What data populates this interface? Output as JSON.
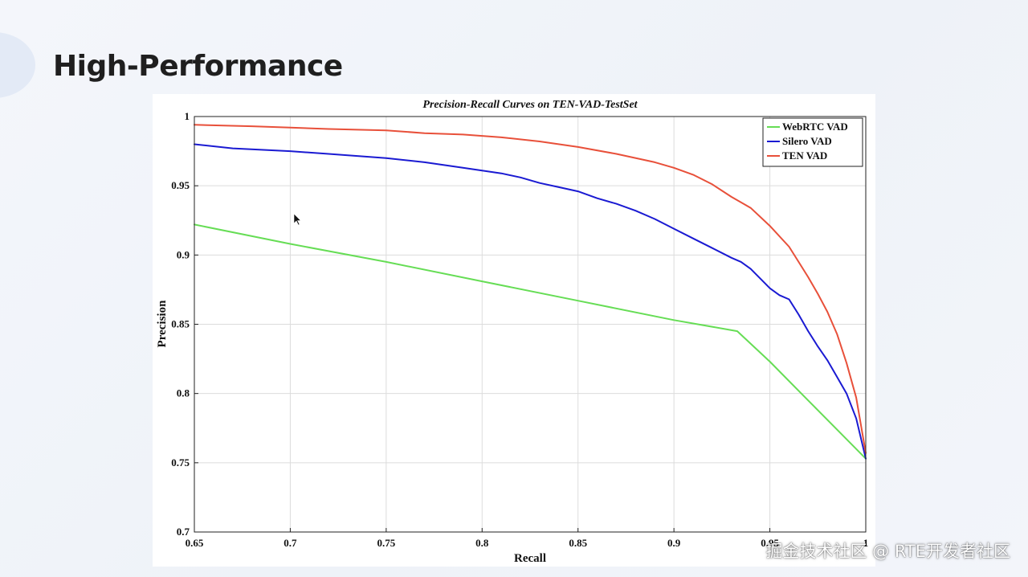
{
  "slide": {
    "title": "High-Performance",
    "watermark": "掘金技术社区 @ RTE开发者社区"
  },
  "chart_data": {
    "type": "line",
    "title": "Precision-Recall Curves on TEN-VAD-TestSet",
    "xlabel": "Recall",
    "ylabel": "Precision",
    "xlim": [
      0.65,
      1
    ],
    "ylim": [
      0.7,
      1
    ],
    "xticks": [
      "0.65",
      "0.7",
      "0.75",
      "0.8",
      "0.85",
      "0.9",
      "0.95",
      "1"
    ],
    "yticks": [
      "0.7",
      "0.75",
      "0.8",
      "0.85",
      "0.9",
      "0.95",
      "1"
    ],
    "grid": true,
    "legend_position": "top-right",
    "series": [
      {
        "name": "WebRTC VAD",
        "color": "#66dd55",
        "x": [
          0.65,
          0.7,
          0.75,
          0.8,
          0.85,
          0.9,
          0.933,
          0.95,
          0.97,
          1.0
        ],
        "y": [
          0.922,
          0.908,
          0.895,
          0.881,
          0.867,
          0.853,
          0.845,
          0.823,
          0.795,
          0.753
        ]
      },
      {
        "name": "Silero VAD",
        "color": "#1a1ad2",
        "x": [
          0.65,
          0.67,
          0.7,
          0.72,
          0.75,
          0.77,
          0.79,
          0.8,
          0.81,
          0.82,
          0.83,
          0.84,
          0.85,
          0.86,
          0.87,
          0.88,
          0.89,
          0.9,
          0.91,
          0.92,
          0.93,
          0.935,
          0.94,
          0.945,
          0.95,
          0.955,
          0.96,
          0.965,
          0.97,
          0.975,
          0.98,
          0.985,
          0.99,
          0.995,
          1.0
        ],
        "y": [
          0.98,
          0.977,
          0.975,
          0.973,
          0.97,
          0.967,
          0.963,
          0.961,
          0.959,
          0.956,
          0.952,
          0.949,
          0.946,
          0.941,
          0.937,
          0.932,
          0.926,
          0.919,
          0.912,
          0.905,
          0.898,
          0.895,
          0.89,
          0.883,
          0.876,
          0.871,
          0.868,
          0.857,
          0.845,
          0.834,
          0.824,
          0.812,
          0.8,
          0.782,
          0.753
        ]
      },
      {
        "name": "TEN VAD",
        "color": "#e8503a",
        "x": [
          0.65,
          0.68,
          0.7,
          0.72,
          0.75,
          0.77,
          0.79,
          0.8,
          0.81,
          0.83,
          0.85,
          0.87,
          0.89,
          0.9,
          0.91,
          0.92,
          0.93,
          0.94,
          0.95,
          0.96,
          0.965,
          0.97,
          0.975,
          0.98,
          0.985,
          0.99,
          0.995,
          1.0
        ],
        "y": [
          0.994,
          0.993,
          0.992,
          0.991,
          0.99,
          0.988,
          0.987,
          0.986,
          0.985,
          0.982,
          0.978,
          0.973,
          0.967,
          0.963,
          0.958,
          0.951,
          0.942,
          0.934,
          0.921,
          0.906,
          0.895,
          0.884,
          0.872,
          0.859,
          0.843,
          0.822,
          0.797,
          0.757
        ]
      }
    ]
  }
}
